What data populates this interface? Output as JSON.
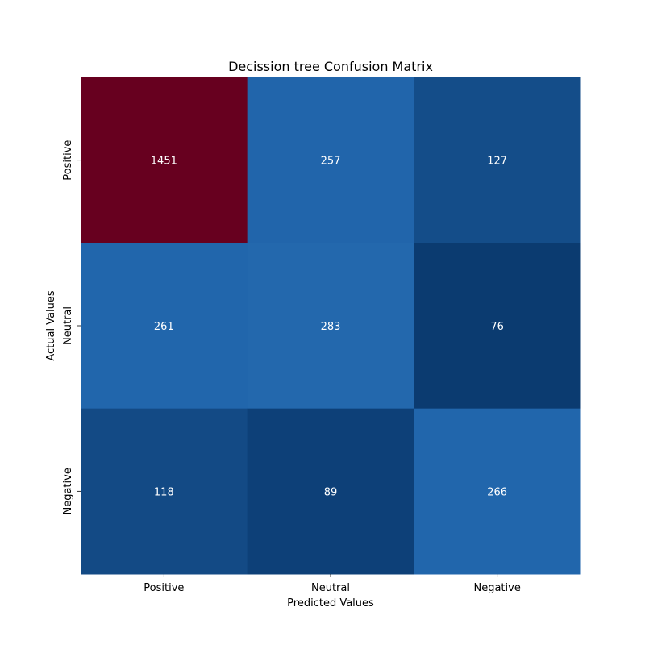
{
  "chart_data": {
    "type": "heatmap",
    "title": "Decission tree Confusion Matrix",
    "xlabel": "Predicted Values",
    "ylabel": "Actual Values",
    "x_categories": [
      "Positive",
      "Neutral",
      "Negative"
    ],
    "y_categories": [
      "Positive",
      "Neutral",
      "Negative"
    ],
    "values": [
      [
        1451,
        257,
        127
      ],
      [
        261,
        283,
        76
      ],
      [
        118,
        89,
        266
      ]
    ],
    "colormap": "RdBu_r",
    "colorbar": false,
    "annotations": true,
    "annotation_color": "#ffffff"
  }
}
